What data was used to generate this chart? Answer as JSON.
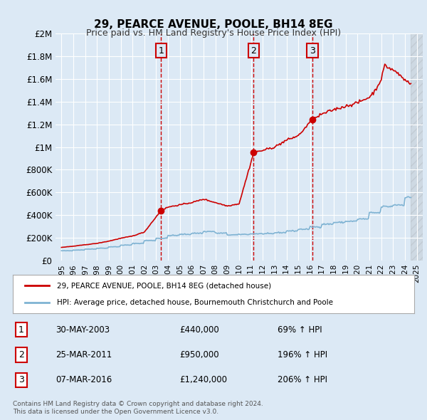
{
  "title": "29, PEARCE AVENUE, POOLE, BH14 8EG",
  "subtitle": "Price paid vs. HM Land Registry's House Price Index (HPI)",
  "background_color": "#dce9f5",
  "plot_bg_color": "#dce9f5",
  "ylabel_ticks": [
    "£0",
    "£200K",
    "£400K",
    "£600K",
    "£800K",
    "£1M",
    "£1.2M",
    "£1.4M",
    "£1.6M",
    "£1.8M",
    "£2M"
  ],
  "ytick_values": [
    0,
    200000,
    400000,
    600000,
    800000,
    1000000,
    1200000,
    1400000,
    1600000,
    1800000,
    2000000
  ],
  "hpi_color": "#7fb3d3",
  "price_color": "#cc0000",
  "sale_color": "#cc0000",
  "sale_marker_color": "#cc0000",
  "dashed_line_color": "#cc0000",
  "numbered_box_color": "#cc0000",
  "sales": [
    {
      "date_str": "30-MAY-2003",
      "date_x": 2003.41,
      "price": 440000,
      "label": "1"
    },
    {
      "date_str": "25-MAR-2011",
      "date_x": 2011.23,
      "price": 950000,
      "label": "2"
    },
    {
      "date_str": "07-MAR-2016",
      "date_x": 2016.18,
      "price": 1240000,
      "label": "3"
    }
  ],
  "legend_entries": [
    {
      "label": "29, PEARCE AVENUE, POOLE, BH14 8EG (detached house)",
      "color": "#cc0000"
    },
    {
      "label": "HPI: Average price, detached house, Bournemouth Christchurch and Poole",
      "color": "#7fb3d3"
    }
  ],
  "table_rows": [
    {
      "num": "1",
      "date": "30-MAY-2003",
      "price": "£440,000",
      "hpi": "69% ↑ HPI"
    },
    {
      "num": "2",
      "date": "25-MAR-2011",
      "price": "£950,000",
      "hpi": "196% ↑ HPI"
    },
    {
      "num": "3",
      "date": "07-MAR-2016",
      "price": "£1,240,000",
      "hpi": "206% ↑ HPI"
    }
  ],
  "footnote": "Contains HM Land Registry data © Crown copyright and database right 2024.\nThis data is licensed under the Open Government Licence v3.0.",
  "xmin": 1994.5,
  "xmax": 2025.5,
  "ymin": 0,
  "ymax": 2000000
}
